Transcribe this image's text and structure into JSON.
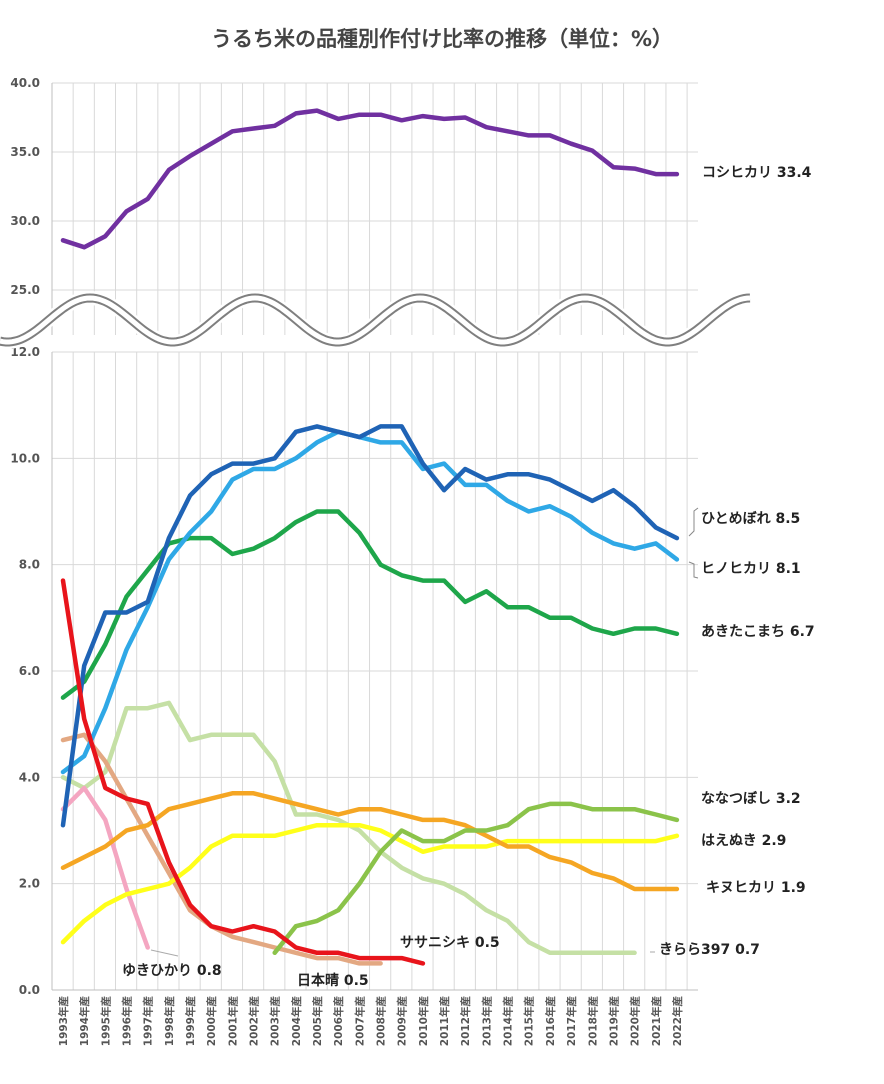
{
  "chart_data": {
    "type": "line",
    "title": "うるち米の品種別作付け比率の推移（単位：%）",
    "categories": [
      "1993年産",
      "1994年産",
      "1995年産",
      "1996年産",
      "1997年産",
      "1998年産",
      "1999年産",
      "2000年産",
      "2001年産",
      "2002年産",
      "2003年産",
      "2004年産",
      "2005年産",
      "2006年産",
      "2007年産",
      "2008年産",
      "2009年産",
      "2010年産",
      "2011年産",
      "2012年産",
      "2013年産",
      "2014年産",
      "2015年産",
      "2016年産",
      "2017年産",
      "2018年産",
      "2019年産",
      "2020年産",
      "2021年産",
      "2022年産"
    ],
    "upper_panel": {
      "ylim": [
        25,
        40
      ],
      "yticks": [
        "40.0",
        "35.0",
        "30.0",
        "25.0"
      ],
      "series": [
        {
          "name": "コシヒカリ",
          "label": "コシヒカリ 33.4",
          "color": "#7030A0",
          "values": [
            28.6,
            28.1,
            28.9,
            30.7,
            31.6,
            33.7,
            34.7,
            35.6,
            36.5,
            36.7,
            36.9,
            37.8,
            38.0,
            37.4,
            37.7,
            37.7,
            37.3,
            37.6,
            37.4,
            37.5,
            36.8,
            36.5,
            36.2,
            36.2,
            35.6,
            35.1,
            33.9,
            33.8,
            33.4,
            33.4
          ]
        }
      ]
    },
    "lower_panel": {
      "ylim": [
        0,
        12
      ],
      "yticks": [
        "12.0",
        "10.0",
        "8.0",
        "6.0",
        "4.0",
        "2.0",
        "0.0"
      ],
      "series": [
        {
          "name": "ひとめぼれ",
          "label": "ひとめぼれ 8.5",
          "color": "#1F63B5",
          "values": [
            3.1,
            6.1,
            7.1,
            7.1,
            7.3,
            8.5,
            9.3,
            9.7,
            9.9,
            9.9,
            10.0,
            10.5,
            10.6,
            10.5,
            10.4,
            10.6,
            10.6,
            9.9,
            9.4,
            9.8,
            9.6,
            9.7,
            9.7,
            9.6,
            9.4,
            9.2,
            9.4,
            9.1,
            8.7,
            8.5
          ]
        },
        {
          "name": "ヒノヒカリ",
          "label": "ヒノヒカリ 8.1",
          "color": "#2FA8E6",
          "values": [
            4.1,
            4.4,
            5.3,
            6.4,
            7.2,
            8.1,
            8.6,
            9.0,
            9.6,
            9.8,
            9.8,
            10.0,
            10.3,
            10.5,
            10.4,
            10.3,
            10.3,
            9.8,
            9.9,
            9.5,
            9.5,
            9.2,
            9.0,
            9.1,
            8.9,
            8.6,
            8.4,
            8.3,
            8.4,
            8.1
          ]
        },
        {
          "name": "あきたこまち",
          "label": "あきたこまち 6.7",
          "color": "#1EA64A",
          "values": [
            5.5,
            5.8,
            6.5,
            7.4,
            7.9,
            8.4,
            8.5,
            8.5,
            8.2,
            8.3,
            8.5,
            8.8,
            9.0,
            9.0,
            8.6,
            8.0,
            7.8,
            7.7,
            7.7,
            7.3,
            7.5,
            7.2,
            7.2,
            7.0,
            7.0,
            6.8,
            6.7,
            6.8,
            6.8,
            6.7
          ]
        },
        {
          "name": "ななつぼし",
          "label": "ななつぼし 3.2",
          "color": "#8BC34A",
          "start_index": 10,
          "values": [
            0.7,
            1.2,
            1.3,
            1.5,
            2.0,
            2.6,
            3.0,
            2.8,
            2.8,
            3.0,
            3.0,
            3.1,
            3.4,
            3.5,
            3.5,
            3.4,
            3.4,
            3.4,
            3.3,
            3.2
          ]
        },
        {
          "name": "はえぬき",
          "label": "はえぬき 2.9",
          "color": "#FFFF1A",
          "values": [
            0.9,
            1.3,
            1.6,
            1.8,
            1.9,
            2.0,
            2.3,
            2.7,
            2.9,
            2.9,
            2.9,
            3.0,
            3.1,
            3.1,
            3.1,
            3.0,
            2.8,
            2.6,
            2.7,
            2.7,
            2.7,
            2.8,
            2.8,
            2.8,
            2.8,
            2.8,
            2.8,
            2.8,
            2.8,
            2.9
          ]
        },
        {
          "name": "キヌヒカリ",
          "label": "キヌヒカリ 1.9",
          "color": "#F5A623",
          "values": [
            2.3,
            2.5,
            2.7,
            3.0,
            3.1,
            3.4,
            3.5,
            3.6,
            3.7,
            3.7,
            3.6,
            3.5,
            3.4,
            3.3,
            3.4,
            3.4,
            3.3,
            3.2,
            3.2,
            3.1,
            2.9,
            2.7,
            2.7,
            2.5,
            2.4,
            2.2,
            2.1,
            1.9,
            1.9,
            1.9
          ]
        },
        {
          "name": "きらら397",
          "label": "きらら397 0.7",
          "color": "#C5E0A5",
          "values": [
            4.0,
            3.8,
            4.1,
            5.3,
            5.3,
            5.4,
            4.7,
            4.8,
            4.8,
            4.8,
            4.3,
            3.3,
            3.3,
            3.2,
            3.0,
            2.6,
            2.3,
            2.1,
            2.0,
            1.8,
            1.5,
            1.3,
            0.9,
            0.7,
            0.7,
            0.7,
            0.7,
            0.7
          ]
        },
        {
          "name": "日本晴",
          "label": "日本晴 0.5",
          "color": "#E3A882",
          "values": [
            4.7,
            4.8,
            4.3,
            3.6,
            2.9,
            2.2,
            1.5,
            1.2,
            1.0,
            0.9,
            0.8,
            0.7,
            0.6,
            0.6,
            0.5,
            0.5
          ]
        },
        {
          "name": "ゆきひかり",
          "label": "ゆきひかり 0.8",
          "color": "#F4A6C1",
          "values": [
            3.4,
            3.8,
            3.2,
            1.9,
            0.8
          ]
        },
        {
          "name": "ササニシキ",
          "label": "ササニシキ 0.5",
          "color": "#E8141B",
          "values": [
            7.7,
            5.1,
            3.8,
            3.6,
            3.5,
            2.4,
            1.6,
            1.2,
            1.1,
            1.2,
            1.1,
            0.8,
            0.7,
            0.7,
            0.6,
            0.6,
            0.6,
            0.5
          ]
        }
      ]
    },
    "grid": true,
    "legend": "inline labels at line ends"
  }
}
